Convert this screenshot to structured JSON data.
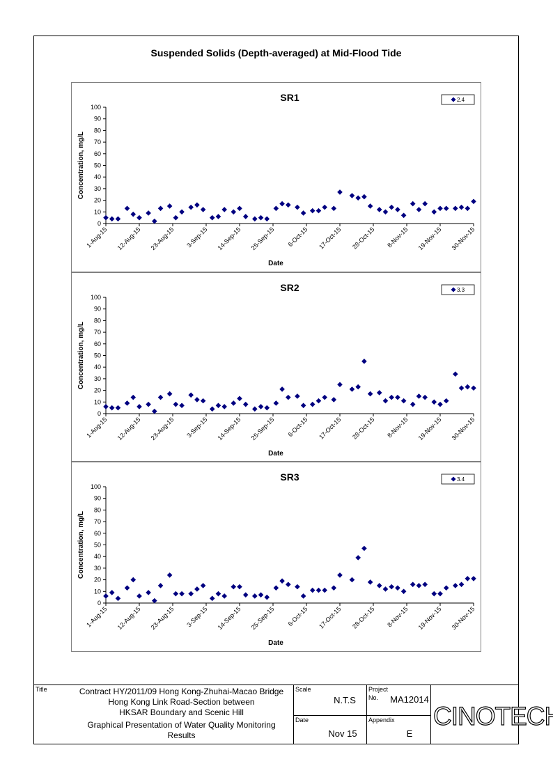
{
  "page_title": "Suspended Solids (Depth-averaged) at Mid-Flood Tide",
  "chart_data": [
    {
      "type": "scatter",
      "title": "SR1",
      "xlabel": "Date",
      "ylabel": "Concentration, mg/L",
      "ylim": [
        0,
        100
      ],
      "yticks": [
        0,
        10,
        20,
        30,
        40,
        50,
        60,
        70,
        80,
        90,
        100
      ],
      "xlim": [
        "2015-08-01",
        "2015-11-30"
      ],
      "xtick_labels": [
        "1-Aug-15",
        "12-Aug-15",
        "23-Aug-15",
        "3-Sep-15",
        "14-Sep-15",
        "25-Sep-15",
        "6-Oct-15",
        "17-Oct-15",
        "28-Oct-15",
        "8-Nov-15",
        "19-Nov-15",
        "30-Nov-15"
      ],
      "legend": {
        "position": "top-right",
        "entries": [
          "2.4"
        ]
      },
      "marker_color": "#000080",
      "series": [
        {
          "name": "2.4",
          "x": [
            "2015-08-01",
            "2015-08-03",
            "2015-08-05",
            "2015-08-08",
            "2015-08-10",
            "2015-08-12",
            "2015-08-15",
            "2015-08-17",
            "2015-08-19",
            "2015-08-22",
            "2015-08-24",
            "2015-08-26",
            "2015-08-29",
            "2015-08-31",
            "2015-09-02",
            "2015-09-05",
            "2015-09-07",
            "2015-09-09",
            "2015-09-12",
            "2015-09-14",
            "2015-09-16",
            "2015-09-19",
            "2015-09-21",
            "2015-09-23",
            "2015-09-26",
            "2015-09-28",
            "2015-09-30",
            "2015-10-03",
            "2015-10-05",
            "2015-10-08",
            "2015-10-10",
            "2015-10-12",
            "2015-10-15",
            "2015-10-17",
            "2015-10-21",
            "2015-10-23",
            "2015-10-25",
            "2015-10-27",
            "2015-10-30",
            "2015-11-01",
            "2015-11-03",
            "2015-11-05",
            "2015-11-07",
            "2015-11-10",
            "2015-11-12",
            "2015-11-14",
            "2015-11-17",
            "2015-11-19",
            "2015-11-21",
            "2015-11-24",
            "2015-11-26",
            "2015-11-28",
            "2015-11-30"
          ],
          "y": [
            5,
            4,
            4,
            13,
            8,
            5,
            9,
            2,
            13,
            15,
            5,
            10,
            14,
            16,
            12,
            5,
            6,
            12,
            10,
            13,
            6,
            4,
            5,
            4,
            13,
            17,
            16,
            14,
            9,
            11,
            11,
            14,
            13,
            27,
            24,
            22,
            23,
            15,
            12,
            10,
            14,
            12,
            7,
            17,
            12,
            17,
            10,
            13,
            13,
            13,
            14,
            13,
            19
          ]
        }
      ]
    },
    {
      "type": "scatter",
      "title": "SR2",
      "xlabel": "Date",
      "ylabel": "Concentration, mg/L",
      "ylim": [
        0,
        100
      ],
      "yticks": [
        0,
        10,
        20,
        30,
        40,
        50,
        60,
        70,
        80,
        90,
        100
      ],
      "xlim": [
        "2015-08-01",
        "2015-11-30"
      ],
      "xtick_labels": [
        "1-Aug-15",
        "12-Aug-15",
        "23-Aug-15",
        "3-Sep-15",
        "14-Sep-15",
        "25-Sep-15",
        "6-Oct-15",
        "17-Oct-15",
        "28-Oct-15",
        "8-Nov-15",
        "19-Nov-15",
        "30-Nov-15"
      ],
      "legend": {
        "position": "top-right",
        "entries": [
          "3.3"
        ]
      },
      "marker_color": "#000080",
      "series": [
        {
          "name": "3.3",
          "x": [
            "2015-08-01",
            "2015-08-03",
            "2015-08-05",
            "2015-08-08",
            "2015-08-10",
            "2015-08-12",
            "2015-08-15",
            "2015-08-17",
            "2015-08-19",
            "2015-08-22",
            "2015-08-24",
            "2015-08-26",
            "2015-08-29",
            "2015-08-31",
            "2015-09-02",
            "2015-09-05",
            "2015-09-07",
            "2015-09-09",
            "2015-09-12",
            "2015-09-14",
            "2015-09-16",
            "2015-09-19",
            "2015-09-21",
            "2015-09-23",
            "2015-09-26",
            "2015-09-28",
            "2015-09-30",
            "2015-10-03",
            "2015-10-05",
            "2015-10-08",
            "2015-10-10",
            "2015-10-12",
            "2015-10-15",
            "2015-10-17",
            "2015-10-21",
            "2015-10-23",
            "2015-10-25",
            "2015-10-27",
            "2015-10-30",
            "2015-11-01",
            "2015-11-03",
            "2015-11-05",
            "2015-11-07",
            "2015-11-10",
            "2015-11-12",
            "2015-11-14",
            "2015-11-17",
            "2015-11-19",
            "2015-11-21",
            "2015-11-24",
            "2015-11-26",
            "2015-11-28",
            "2015-11-30"
          ],
          "y": [
            6,
            5,
            5,
            9,
            14,
            6,
            8,
            2,
            14,
            17,
            8,
            7,
            16,
            12,
            11,
            4,
            7,
            6,
            9,
            13,
            8,
            4,
            6,
            5,
            9,
            21,
            14,
            15,
            7,
            8,
            11,
            14,
            12,
            25,
            21,
            23,
            45,
            17,
            18,
            11,
            14,
            14,
            11,
            8,
            15,
            14,
            10,
            8,
            11,
            34,
            22,
            23,
            22
          ]
        }
      ]
    },
    {
      "type": "scatter",
      "title": "SR3",
      "xlabel": "Date",
      "ylabel": "Concentration, mg/L",
      "ylim": [
        0,
        100
      ],
      "yticks": [
        0,
        10,
        20,
        30,
        40,
        50,
        60,
        70,
        80,
        90,
        100
      ],
      "xlim": [
        "2015-08-01",
        "2015-11-30"
      ],
      "xtick_labels": [
        "1-Aug-15",
        "12-Aug-15",
        "23-Aug-15",
        "3-Sep-15",
        "14-Sep-15",
        "25-Sep-15",
        "6-Oct-15",
        "17-Oct-15",
        "28-Oct-15",
        "8-Nov-15",
        "19-Nov-15",
        "30-Nov-15"
      ],
      "legend": {
        "position": "top-right",
        "entries": [
          "3.4"
        ]
      },
      "marker_color": "#000080",
      "series": [
        {
          "name": "3.4",
          "x": [
            "2015-08-01",
            "2015-08-03",
            "2015-08-05",
            "2015-08-08",
            "2015-08-10",
            "2015-08-12",
            "2015-08-15",
            "2015-08-17",
            "2015-08-19",
            "2015-08-22",
            "2015-08-24",
            "2015-08-26",
            "2015-08-29",
            "2015-08-31",
            "2015-09-02",
            "2015-09-05",
            "2015-09-07",
            "2015-09-09",
            "2015-09-12",
            "2015-09-14",
            "2015-09-16",
            "2015-09-19",
            "2015-09-21",
            "2015-09-23",
            "2015-09-26",
            "2015-09-28",
            "2015-09-30",
            "2015-10-03",
            "2015-10-05",
            "2015-10-08",
            "2015-10-10",
            "2015-10-12",
            "2015-10-15",
            "2015-10-17",
            "2015-10-21",
            "2015-10-23",
            "2015-10-25",
            "2015-10-27",
            "2015-10-30",
            "2015-11-01",
            "2015-11-03",
            "2015-11-05",
            "2015-11-07",
            "2015-11-10",
            "2015-11-12",
            "2015-11-14",
            "2015-11-17",
            "2015-11-19",
            "2015-11-21",
            "2015-11-24",
            "2015-11-26",
            "2015-11-28",
            "2015-11-30"
          ],
          "y": [
            6,
            9,
            4,
            13,
            20,
            6,
            9,
            2,
            15,
            24,
            8,
            8,
            8,
            12,
            15,
            4,
            8,
            6,
            14,
            14,
            7,
            6,
            7,
            5,
            13,
            19,
            16,
            14,
            6,
            11,
            11,
            11,
            13,
            24,
            20,
            39,
            47,
            18,
            15,
            12,
            14,
            13,
            10,
            16,
            15,
            16,
            8,
            8,
            13,
            15,
            16,
            21,
            21
          ]
        }
      ]
    }
  ],
  "title_block": {
    "title_label": "Title",
    "title_lines": [
      "Contract HY/2011/09 Hong Kong-Zhuhai-Macao Bridge",
      "Hong Kong Link Road-Section between",
      "HKSAR Boundary and Scenic Hill"
    ],
    "subtitle_lines": [
      "Graphical Presentation of Water Quality Monitoring",
      "Results"
    ],
    "scale_label": "Scale",
    "scale_value": "N.T.S",
    "date_label": "Date",
    "date_value": "Nov 15",
    "project_label": "Project",
    "project_no_label": "No.",
    "project_value": "MA12014",
    "appendix_label": "Appendix",
    "appendix_value": "E",
    "logo": "CINOTECH"
  }
}
